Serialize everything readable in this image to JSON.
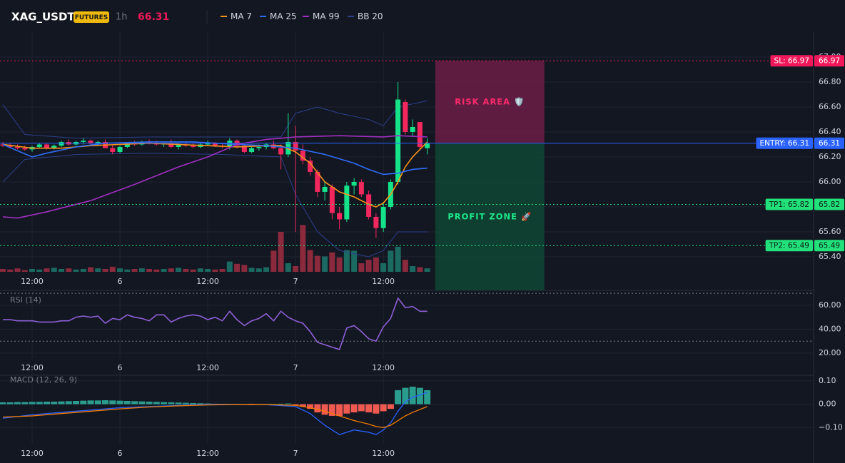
{
  "header": {
    "symbol": "XAG_USDT",
    "badge": "FUTURES",
    "interval": "1h",
    "price": 66.31
  },
  "chart_data": [
    {
      "type": "candlestick",
      "x": [
        0,
        1,
        2,
        3,
        4,
        5,
        6,
        7,
        8,
        9,
        10,
        11,
        12,
        13,
        14,
        15,
        16,
        17,
        18,
        19,
        20,
        21,
        22,
        23,
        24,
        25,
        26,
        27,
        28,
        29,
        30,
        31,
        32,
        33,
        34,
        35,
        36,
        37,
        38,
        39,
        40,
        41,
        42,
        43,
        44,
        45,
        46,
        47,
        48,
        49,
        50,
        51,
        52,
        53,
        54,
        55,
        56,
        57,
        58
      ],
      "open": [
        66.3,
        66.29,
        66.28,
        66.27,
        66.26,
        66.28,
        66.3,
        66.27,
        66.29,
        66.32,
        66.3,
        66.32,
        66.33,
        66.31,
        66.32,
        66.27,
        66.24,
        66.28,
        66.31,
        66.3,
        66.32,
        66.31,
        66.3,
        66.31,
        66.28,
        66.3,
        66.29,
        66.28,
        66.3,
        66.31,
        66.29,
        66.28,
        66.33,
        66.29,
        66.24,
        66.27,
        66.28,
        66.3,
        66.27,
        66.22,
        66.32,
        66.25,
        66.17,
        66.08,
        65.92,
        65.96,
        65.75,
        65.7,
        65.97,
        66.0,
        65.9,
        65.72,
        65.63,
        65.8,
        66.0,
        66.64,
        66.4,
        66.48,
        66.27
      ],
      "high": [
        66.32,
        66.31,
        66.3,
        66.29,
        66.29,
        66.31,
        66.31,
        66.3,
        66.33,
        66.34,
        66.33,
        66.35,
        66.34,
        66.33,
        66.34,
        66.3,
        66.29,
        66.32,
        66.33,
        66.33,
        66.34,
        66.33,
        66.32,
        66.34,
        66.31,
        66.32,
        66.31,
        66.31,
        66.33,
        66.32,
        66.31,
        66.35,
        66.34,
        66.3,
        66.28,
        66.3,
        66.31,
        66.33,
        66.3,
        66.55,
        66.45,
        66.3,
        66.2,
        66.1,
        66.0,
        65.98,
        65.8,
        66.0,
        66.03,
        66.02,
        65.93,
        65.75,
        65.84,
        66.02,
        66.8,
        66.66,
        66.5,
        66.48,
        66.35
      ],
      "low": [
        66.28,
        66.27,
        66.26,
        66.25,
        66.24,
        66.27,
        66.26,
        66.26,
        66.28,
        66.29,
        66.29,
        66.3,
        66.3,
        66.29,
        66.28,
        66.22,
        66.23,
        66.27,
        66.29,
        66.29,
        66.3,
        66.29,
        66.28,
        66.27,
        66.26,
        66.28,
        66.27,
        66.27,
        66.29,
        66.28,
        66.27,
        66.26,
        66.27,
        66.23,
        66.23,
        66.25,
        66.26,
        66.26,
        66.1,
        66.2,
        65.6,
        66.14,
        66.05,
        65.88,
        65.85,
        65.7,
        65.62,
        65.68,
        65.9,
        65.88,
        65.7,
        65.55,
        65.6,
        65.78,
        65.98,
        66.38,
        66.36,
        66.26,
        66.22
      ],
      "close": [
        66.29,
        66.28,
        66.27,
        66.26,
        66.28,
        66.3,
        66.27,
        66.29,
        66.32,
        66.3,
        66.32,
        66.33,
        66.31,
        66.32,
        66.27,
        66.24,
        66.28,
        66.31,
        66.3,
        66.32,
        66.31,
        66.3,
        66.31,
        66.28,
        66.3,
        66.29,
        66.28,
        66.3,
        66.31,
        66.29,
        66.28,
        66.33,
        66.29,
        66.24,
        66.27,
        66.28,
        66.3,
        66.27,
        66.22,
        66.32,
        66.25,
        66.17,
        66.08,
        65.92,
        65.96,
        65.75,
        65.7,
        65.97,
        66.0,
        65.9,
        65.72,
        65.63,
        65.8,
        66.0,
        66.66,
        66.4,
        66.44,
        66.28,
        66.31
      ],
      "up_color": "#14e38a",
      "down_color": "#f2275d",
      "volume": [
        5,
        4,
        6,
        3,
        5,
        4,
        6,
        7,
        5,
        6,
        4,
        5,
        8,
        6,
        5,
        9,
        6,
        4,
        5,
        6,
        5,
        4,
        5,
        6,
        7,
        5,
        4,
        6,
        5,
        4,
        5,
        18,
        14,
        12,
        7,
        6,
        8,
        37,
        70,
        15,
        10,
        82,
        38,
        28,
        27,
        34,
        25,
        38,
        37,
        15,
        21,
        25,
        15,
        37,
        44,
        21,
        10,
        8,
        6
      ],
      "volume_up_color": "#1b6a62",
      "volume_down_color": "#8a2a3c",
      "vlim": [
        0,
        100
      ],
      "series": [
        {
          "name": "MA 7",
          "color": "#f7931a",
          "x": [
            0,
            4,
            8,
            12,
            16,
            20,
            24,
            28,
            32,
            36,
            38,
            40,
            42,
            44,
            46,
            48,
            50,
            51,
            52,
            53,
            54,
            55,
            56,
            57,
            58
          ],
          "values": [
            66.3,
            66.27,
            66.27,
            66.29,
            66.3,
            66.31,
            66.3,
            66.29,
            66.28,
            66.29,
            66.29,
            66.24,
            66.15,
            66.0,
            65.92,
            65.88,
            65.82,
            65.8,
            65.83,
            65.9,
            66.0,
            66.12,
            66.2,
            66.26,
            66.32
          ]
        },
        {
          "name": "MA 25",
          "color": "#2f6df6",
          "x": [
            0,
            2,
            4,
            6,
            10,
            14,
            20,
            26,
            32,
            36,
            40,
            44,
            48,
            50,
            52,
            54,
            56,
            58
          ],
          "values": [
            66.3,
            66.25,
            66.2,
            66.23,
            66.28,
            66.31,
            66.32,
            66.32,
            66.3,
            66.29,
            66.27,
            66.22,
            66.15,
            66.1,
            66.06,
            66.07,
            66.1,
            66.11
          ]
        },
        {
          "name": "MA 99",
          "color": "#a02fc0",
          "x": [
            0,
            2,
            6,
            12,
            18,
            24,
            28,
            32,
            36,
            40,
            46,
            52,
            54,
            58
          ],
          "values": [
            65.72,
            65.71,
            65.76,
            65.85,
            65.98,
            66.12,
            66.2,
            66.3,
            66.34,
            66.36,
            66.37,
            66.36,
            66.37,
            66.36
          ]
        },
        {
          "name": "BB 20",
          "color": "#2b3f8c",
          "x": [
            0,
            3,
            10,
            20,
            30,
            38,
            40,
            43,
            46,
            50,
            52,
            54,
            58
          ],
          "values": [
            66.62,
            66.38,
            66.35,
            66.36,
            66.36,
            66.36,
            66.55,
            66.6,
            66.55,
            66.5,
            66.45,
            66.6,
            66.65
          ],
          "lower": [
            66.0,
            66.18,
            66.22,
            66.23,
            66.22,
            66.2,
            65.9,
            65.6,
            65.45,
            65.4,
            65.45,
            65.6,
            65.6
          ]
        }
      ],
      "zones": [
        {
          "label": "RISK AREA 🛡️",
          "from": 66.97,
          "to": 66.31,
          "xrange": [
            59.1,
            74.0
          ],
          "color": "#6b1d45",
          "text_color": "#ff2a6d"
        },
        {
          "label": "PROFIT ZONE 🚀",
          "from": 66.31,
          "to": 65.131,
          "xrange": [
            59.1,
            74.0
          ],
          "color": "#0e4634",
          "text_color": "#1ee88a"
        }
      ],
      "levels": [
        {
          "label": "SL: 66.97",
          "value": 66.97,
          "color": "#f0185a",
          "text_color": "#ffffff",
          "style": "dotted"
        },
        {
          "label": "ENTRY: 66.31",
          "value": 66.31,
          "color": "#2962ff",
          "text_color": "#ffffff",
          "style": "solid"
        },
        {
          "label": "TP1: 65.82",
          "value": 65.82,
          "color": "#22e07a",
          "text_color": "#0b1f14",
          "style": "dotted"
        },
        {
          "label": "TP2: 65.49",
          "value": 65.49,
          "color": "#22e07a",
          "text_color": "#0b1f14",
          "style": "dotted"
        }
      ],
      "xlim": [
        -0.39,
        110.8
      ],
      "xticks": [
        {
          "value": 4,
          "label": "12:00"
        },
        {
          "value": 16,
          "label": "6"
        },
        {
          "value": 28,
          "label": "12:00"
        },
        {
          "value": 40,
          "label": "7"
        },
        {
          "value": 52,
          "label": "12:00"
        }
      ],
      "ylim": [
        65.131,
        67.2
      ],
      "yticks": [
        {
          "value": 67.0,
          "label": "67.00"
        },
        {
          "value": 66.8,
          "label": "66.80"
        },
        {
          "value": 66.6,
          "label": "66.60"
        },
        {
          "value": 66.4,
          "label": "66.40"
        },
        {
          "value": 66.2,
          "label": "66.20"
        },
        {
          "value": 66.0,
          "label": "66.00"
        },
        {
          "value": 65.8,
          "label": "65.80"
        },
        {
          "value": 65.6,
          "label": "65.60"
        },
        {
          "value": 65.4,
          "label": "65.40"
        }
      ],
      "grid": true
    },
    {
      "type": "line",
      "title": "RSI (14)",
      "x": [
        0,
        1,
        2,
        3,
        4,
        5,
        6,
        7,
        8,
        9,
        10,
        11,
        12,
        13,
        14,
        15,
        16,
        17,
        18,
        19,
        20,
        21,
        22,
        23,
        24,
        25,
        26,
        27,
        28,
        29,
        30,
        31,
        32,
        33,
        34,
        35,
        36,
        37,
        38,
        39,
        40,
        41,
        42,
        43,
        44,
        45,
        46,
        47,
        48,
        49,
        50,
        51,
        52,
        53,
        54,
        55,
        56,
        57,
        58
      ],
      "series": [
        {
          "color": "#8e5fd6",
          "values": [
            48,
            48,
            47,
            47,
            47,
            46,
            46,
            46,
            47,
            47,
            50,
            51,
            50,
            51,
            45,
            49,
            48,
            52,
            50,
            49,
            47,
            52,
            52,
            46,
            49,
            51,
            52,
            51,
            48,
            50,
            47,
            55,
            48,
            43,
            47,
            49,
            53,
            47,
            55,
            50,
            47,
            45,
            38,
            29,
            27,
            25,
            23,
            41,
            43,
            38,
            32,
            30,
            42,
            49,
            66,
            58,
            59,
            55,
            55
          ]
        }
      ],
      "guides": [
        70,
        30
      ],
      "xlim": [
        -0.39,
        110.8
      ],
      "xticks": [
        {
          "value": 4,
          "label": "12:00"
        },
        {
          "value": 16,
          "label": "6"
        },
        {
          "value": 28,
          "label": "12:00"
        },
        {
          "value": 40,
          "label": "7"
        },
        {
          "value": 52,
          "label": "12:00"
        }
      ],
      "ylim": [
        15.2,
        70.7
      ],
      "yticks": [
        {
          "value": 60,
          "label": "60.00"
        },
        {
          "value": 40,
          "label": "40.00"
        },
        {
          "value": 20,
          "label": "20.00"
        }
      ],
      "grid": true
    },
    {
      "type": "macd",
      "title": "MACD (12, 26, 9)",
      "x": [
        0,
        1,
        2,
        3,
        4,
        5,
        6,
        7,
        8,
        9,
        10,
        11,
        12,
        13,
        14,
        15,
        16,
        17,
        18,
        19,
        20,
        21,
        22,
        23,
        24,
        25,
        26,
        27,
        28,
        29,
        30,
        31,
        32,
        33,
        34,
        35,
        36,
        37,
        38,
        39,
        40,
        41,
        42,
        43,
        44,
        45,
        46,
        47,
        48,
        49,
        50,
        51,
        52,
        53,
        54,
        55,
        56,
        57,
        58
      ],
      "histogram": [
        0.008,
        0.008,
        0.009,
        0.009,
        0.01,
        0.01,
        0.011,
        0.011,
        0.012,
        0.013,
        0.014,
        0.015,
        0.016,
        0.016,
        0.017,
        0.016,
        0.015,
        0.014,
        0.013,
        0.012,
        0.011,
        0.01,
        0.009,
        0.008,
        0.007,
        0.006,
        0.005,
        0.004,
        0.003,
        0.002,
        0.001,
        -0.002,
        -0.003,
        -0.003,
        -0.004,
        -0.003,
        -0.002,
        0.001,
        0.002,
        0.003,
        -0.004,
        -0.01,
        -0.02,
        -0.035,
        -0.045,
        -0.05,
        -0.05,
        -0.04,
        -0.035,
        -0.03,
        -0.035,
        -0.04,
        -0.03,
        -0.02,
        0.06,
        0.07,
        0.075,
        0.07,
        0.06
      ],
      "hist_up_color": "#2a9d8f",
      "hist_down_color": "#ef5a50",
      "series": [
        {
          "color": "#2962ff",
          "x": [
            0,
            4,
            8,
            12,
            16,
            20,
            24,
            28,
            32,
            36,
            40,
            42,
            44,
            46,
            47,
            48,
            50,
            51,
            52,
            53,
            54,
            55,
            56,
            58
          ],
          "values": [
            -0.06,
            -0.045,
            -0.035,
            -0.025,
            -0.015,
            -0.01,
            -0.005,
            0,
            0,
            -0.002,
            -0.01,
            -0.04,
            -0.09,
            -0.13,
            -0.12,
            -0.11,
            -0.12,
            -0.13,
            -0.11,
            -0.08,
            -0.03,
            0.01,
            0.03,
            0.05
          ]
        },
        {
          "color": "#f57c00",
          "x": [
            0,
            4,
            8,
            12,
            16,
            20,
            24,
            28,
            32,
            36,
            40,
            42,
            44,
            46,
            47,
            48,
            50,
            51,
            52,
            53,
            54,
            55,
            56,
            58
          ],
          "values": [
            -0.055,
            -0.05,
            -0.04,
            -0.03,
            -0.02,
            -0.012,
            -0.007,
            -0.003,
            -0.001,
            -0.001,
            -0.005,
            -0.015,
            -0.03,
            -0.05,
            -0.06,
            -0.07,
            -0.085,
            -0.095,
            -0.1,
            -0.09,
            -0.07,
            -0.05,
            -0.035,
            -0.01
          ]
        }
      ],
      "xlim": [
        -0.39,
        110.8
      ],
      "xticks": [
        {
          "value": 4,
          "label": "12:00"
        },
        {
          "value": 16,
          "label": "6"
        },
        {
          "value": 28,
          "label": "12:00"
        },
        {
          "value": 40,
          "label": "7"
        },
        {
          "value": 52,
          "label": "12:00"
        }
      ],
      "ylim": [
        -0.169,
        0.136
      ],
      "yticks": [
        {
          "value": 0.1,
          "label": "0.10"
        },
        {
          "value": 0,
          "label": "0.00"
        },
        {
          "value": -0.1,
          "label": "−0.10"
        }
      ],
      "grid": true
    }
  ]
}
